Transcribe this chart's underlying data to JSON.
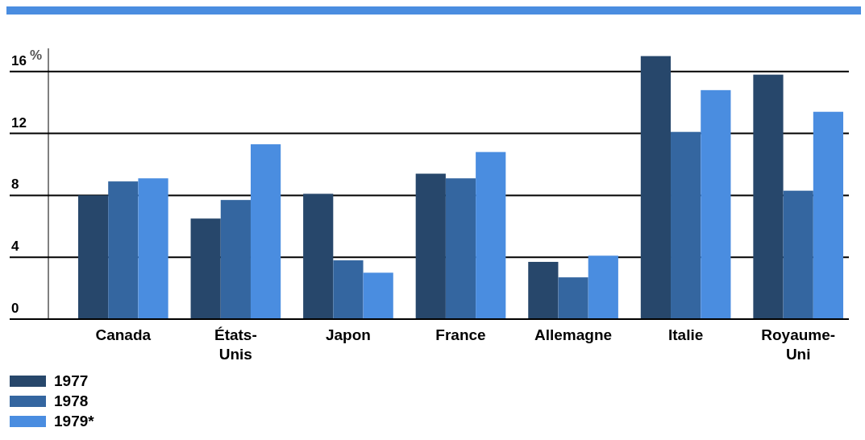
{
  "chart_data": {
    "type": "bar",
    "ylabel": "%",
    "categories": [
      "Canada",
      "États-Unis",
      "Japon",
      "France",
      "Allemagne",
      "Italie",
      "Royaume-Uni"
    ],
    "series": [
      {
        "name": "1977",
        "color": "#27476b",
        "values": [
          8.0,
          6.5,
          8.1,
          9.4,
          3.7,
          17.0,
          15.8
        ]
      },
      {
        "name": "1978",
        "color": "#3466a0",
        "values": [
          8.9,
          7.7,
          3.8,
          9.1,
          2.7,
          12.1,
          8.3
        ]
      },
      {
        "name": "1979*",
        "color": "#4a8de0",
        "values": [
          9.1,
          11.3,
          3.0,
          10.8,
          4.1,
          14.8,
          13.4
        ]
      }
    ],
    "ylim": [
      0,
      17.5
    ],
    "yticks": [
      0,
      4,
      8,
      12,
      16
    ],
    "grid": "y",
    "legend": "bottom left"
  }
}
